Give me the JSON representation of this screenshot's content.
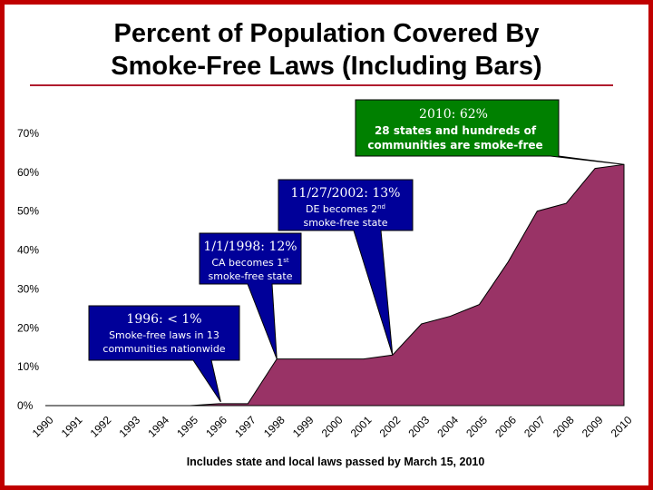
{
  "slide": {
    "title_line1": "Percent of Population Covered By",
    "title_line2": "Smoke-Free Laws (Including Bars)",
    "footnote": "Includes state and local laws passed by March 15, 2010"
  },
  "colors": {
    "border": "#c00000",
    "area_fill": "#993366",
    "callout_fill": "#000099",
    "callout_2010_fill": "#008000"
  },
  "chart_data": {
    "type": "area",
    "x": [
      "1990",
      "1991",
      "1992",
      "1993",
      "1994",
      "1995",
      "1996",
      "1997",
      "1998",
      "1999",
      "2000",
      "2001",
      "2002",
      "2003",
      "2004",
      "2005",
      "2006",
      "2007",
      "2008",
      "2009",
      "2010"
    ],
    "values": [
      0,
      0,
      0,
      0,
      0,
      0,
      0.5,
      0.5,
      12,
      12,
      12,
      12,
      13,
      21,
      23,
      26,
      37,
      50,
      52,
      61,
      62
    ],
    "y_tick_labels": [
      "0%",
      "10%",
      "20%",
      "30%",
      "40%",
      "50%",
      "60%",
      "70%"
    ],
    "ylim": [
      0,
      70
    ],
    "grid": false,
    "annotations": [
      {
        "id": "c1996",
        "head": "1996: < 1%",
        "lines": [
          "Smoke-free laws in 13",
          "communities nationwide"
        ],
        "target_year": "1996"
      },
      {
        "id": "c1998",
        "head": "1/1/1998: 12%",
        "line1_pre": "CA becomes 1",
        "line1_sup": "st",
        "line2": "smoke-free state",
        "target_year": "1998"
      },
      {
        "id": "c2002",
        "head": "11/27/2002: 13%",
        "line1_pre": "DE becomes 2",
        "line1_sup": "nd",
        "line2": "smoke-free state",
        "target_year": "2002"
      },
      {
        "id": "c2010",
        "head": "2010: 62%",
        "lines": [
          "28 states and hundreds of",
          "communities are smoke-free"
        ],
        "target_year": "2010"
      }
    ]
  }
}
